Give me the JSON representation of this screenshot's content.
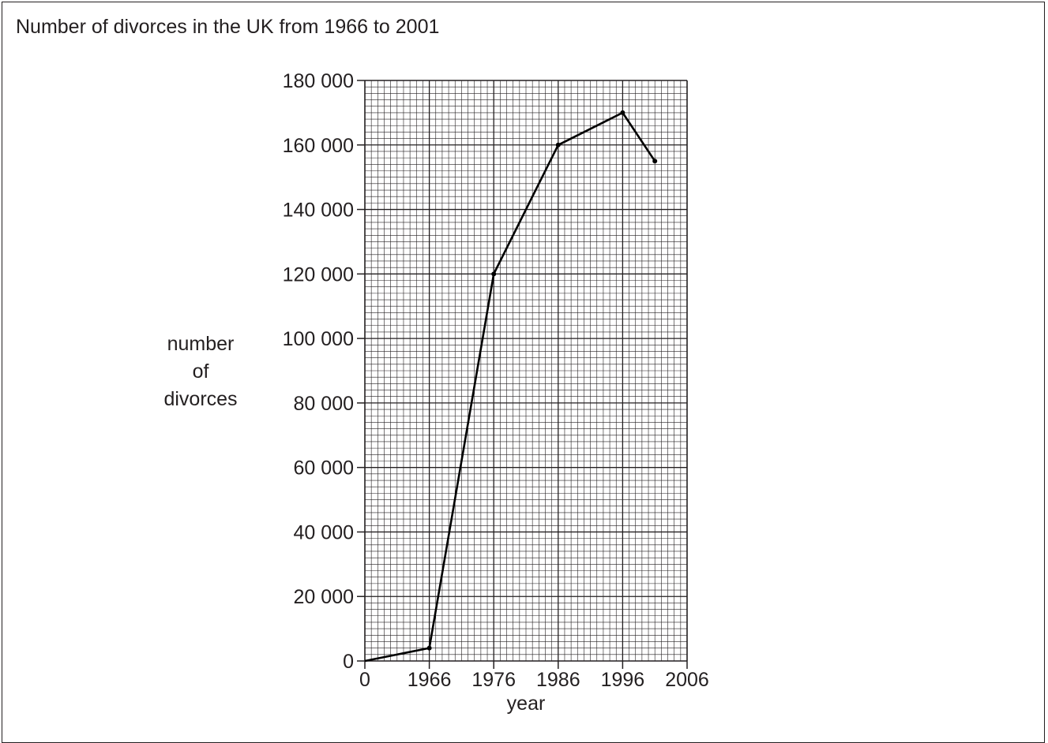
{
  "chart_data": {
    "type": "line",
    "title": "Number of divorces in the UK from 1966 to 2001",
    "xlabel": "year",
    "ylabel_lines": [
      "number",
      "of",
      "divorces"
    ],
    "x_tick_labels": [
      "0",
      "1966",
      "1976",
      "1986",
      "1996",
      "2006"
    ],
    "y_tick_labels": [
      "0",
      "20 000",
      "40 000",
      "60 000",
      "80 000",
      "100 000",
      "120 000",
      "140 000",
      "160 000",
      "180 000"
    ],
    "ylim": [
      0,
      180000
    ],
    "y_major_step": 20000,
    "x_note": "axis break: origin labelled 0, then 1966 to 2006",
    "grid": true,
    "series": [
      {
        "x": [
          0,
          1966,
          1976,
          1986,
          1996,
          2001
        ],
        "values": [
          0,
          4000,
          120000,
          160000,
          170000,
          155000
        ]
      }
    ],
    "colors": {
      "line": "#000000",
      "grid_major": "#231f20",
      "grid_minor": "#231f20"
    }
  }
}
